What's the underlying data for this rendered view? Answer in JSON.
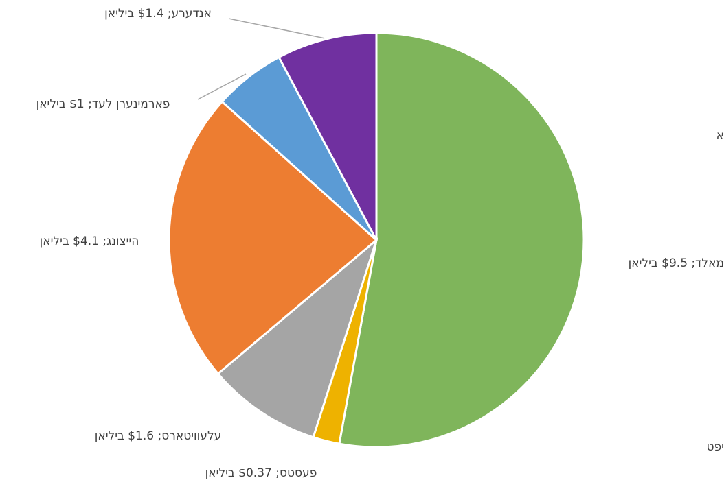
{
  "chart_data": {
    "type": "pie",
    "values": [
      9.5,
      0.37,
      1.6,
      4.1,
      1,
      1.4
    ],
    "value_labels": [
      "מאלד; $9.5 ביליאן",
      "פעסטס; $0.37 ביליאן",
      "עלעוויטארס; $1.6 ביליאן",
      "הייצונג; $4.1 ביליאן",
      "פארמינערן לעד; $1 ביליאן",
      "אנדערע; $1.4 ביליאן"
    ],
    "colors": [
      "#7fb55b",
      "#eeb200",
      "#a5a5a5",
      "#ed7d31",
      "#5b9bd5",
      "#7030a0"
    ],
    "annotations": [
      "א",
      "יפט"
    ]
  }
}
